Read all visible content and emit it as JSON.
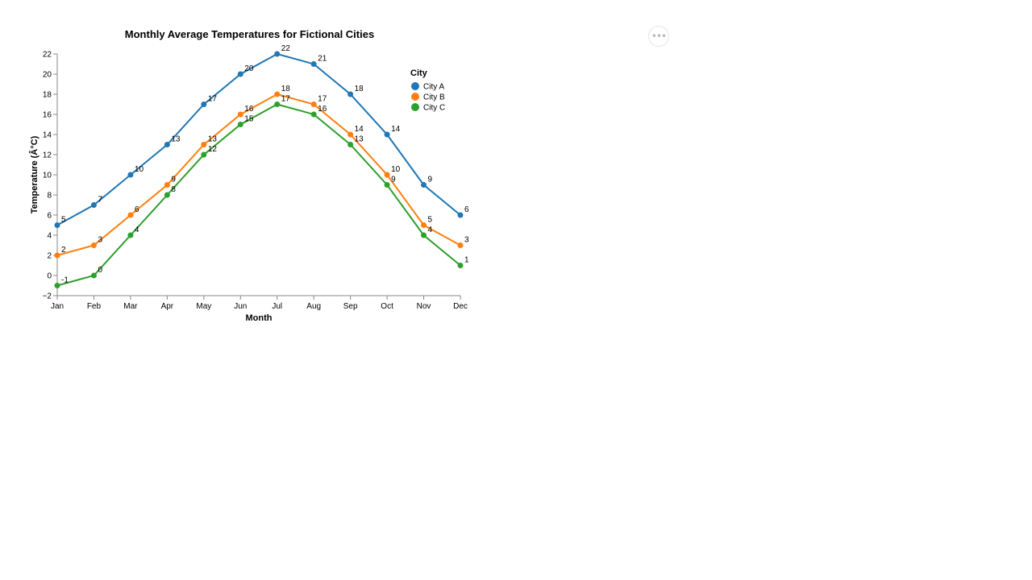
{
  "chart_data": {
    "type": "line",
    "title": "Monthly Average Temperatures for Fictional Cities",
    "xlabel": "Month",
    "ylabel": "Temperature (Â°C)",
    "categories": [
      "Jan",
      "Feb",
      "Mar",
      "Apr",
      "May",
      "Jun",
      "Jul",
      "Aug",
      "Sep",
      "Oct",
      "Nov",
      "Dec"
    ],
    "ylim": [
      -2,
      22
    ],
    "yticks": [
      "−2",
      "0",
      "2",
      "4",
      "6",
      "8",
      "10",
      "12",
      "14",
      "16",
      "18",
      "20",
      "22"
    ],
    "ytick_values": [
      -2,
      0,
      2,
      4,
      6,
      8,
      10,
      12,
      14,
      16,
      18,
      20,
      22
    ],
    "grid": false,
    "legend": {
      "title": "City",
      "placement": "top-right"
    },
    "series": [
      {
        "name": "City A",
        "color": "#1f77b4",
        "values": [
          5,
          7,
          10,
          13,
          17,
          20,
          22,
          21,
          18,
          14,
          9,
          6
        ]
      },
      {
        "name": "City B",
        "color": "#ff7f0e",
        "values": [
          2,
          3,
          6,
          9,
          13,
          16,
          18,
          17,
          14,
          10,
          5,
          3
        ]
      },
      {
        "name": "City C",
        "color": "#2ca02c",
        "values": [
          -1,
          0,
          4,
          8,
          12,
          15,
          17,
          16,
          13,
          9,
          4,
          1
        ]
      }
    ]
  },
  "menu": {
    "icon": "ellipsis-icon",
    "label": "•••"
  }
}
